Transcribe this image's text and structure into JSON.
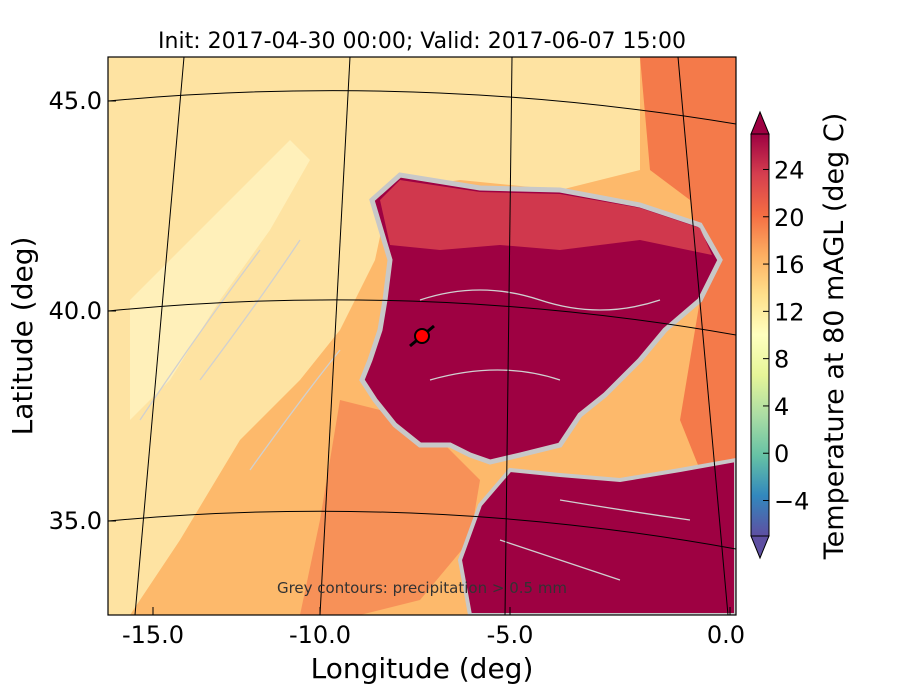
{
  "chart_data": {
    "type": "heatmap",
    "title": "Init: 2017-04-30 00:00; Valid: 2017-06-07 15:00",
    "xlabel": "Longitude (deg)",
    "ylabel": "Latitude (deg)",
    "xlim": [
      -16,
      0.3
    ],
    "ylim": [
      32.8,
      46
    ],
    "x_ticks": [
      "-15.0",
      "-10.0",
      "-5.0",
      "0.0"
    ],
    "y_ticks": [
      "35.0",
      "40.0",
      "45.0"
    ],
    "colorbar": {
      "label": "Temperature at 80 mAGL (deg C)",
      "ticks": [
        "−4",
        "0",
        "4",
        "8",
        "12",
        "16",
        "20",
        "24"
      ],
      "range": [
        -7,
        27
      ],
      "extend": "both"
    },
    "annotation": "Grey contours: precipitation > 0.5 mm",
    "marker": {
      "lon": -7.6,
      "lat": 39.4,
      "color": "#ff0000"
    },
    "grid": true,
    "colormap": [
      "#5e4fa2",
      "#3288bd",
      "#66c2a5",
      "#abdda4",
      "#e6f598",
      "#ffffbf",
      "#fee08b",
      "#fdae61",
      "#f46d43",
      "#d53e4f",
      "#9e0142"
    ]
  }
}
